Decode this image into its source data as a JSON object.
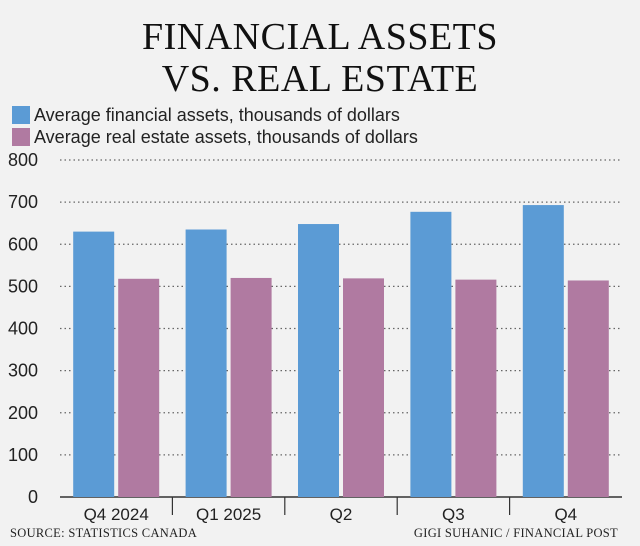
{
  "title": {
    "line1": "FINANCIAL ASSETS",
    "line2": "VS. REAL ESTATE"
  },
  "footer": {
    "source": "SOURCE: STATISTICS CANADA",
    "credit": "GIGI SUHANIC / FINANCIAL POST"
  },
  "chart_data": {
    "type": "bar",
    "title": "FINANCIAL ASSETS VS. REAL ESTATE",
    "categories": [
      "Q4 2024",
      "Q1 2025",
      "Q2",
      "Q3",
      "Q4"
    ],
    "series": [
      {
        "name": "Average financial assets, thousands of dollars",
        "color": "#5b9bd5",
        "values": [
          630,
          635,
          648,
          677,
          693
        ]
      },
      {
        "name": "Average real estate assets, thousands of dollars",
        "color": "#b07aa1",
        "values": [
          518,
          520,
          519,
          516,
          514
        ]
      }
    ],
    "y_ticks": [
      "0",
      "100",
      "200",
      "300",
      "400",
      "500",
      "600",
      "700",
      "800"
    ],
    "ylim": [
      0,
      800
    ],
    "grid": "horizontal dotted",
    "legend_position": "top-left"
  }
}
